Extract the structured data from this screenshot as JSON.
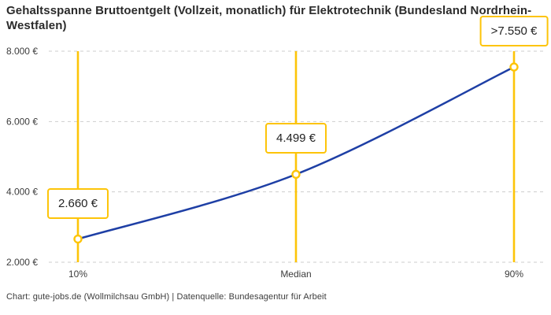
{
  "header": {
    "title": "Gehaltsspanne Bruttoentgelt (Vollzeit, monatlich) für Elektrotechnik (Bundesland Nordrhein-Westfalen)"
  },
  "footer": {
    "credit": "Chart: gute-jobs.de (Wollmilchsau GmbH) | Datenquelle: Bundesagentur für Arbeit"
  },
  "colors": {
    "accent_yellow": "#FDC408",
    "line_blue": "#1E3FA5",
    "grid": "#CDCDCD",
    "title_text": "#2B2B2B",
    "axis_text": "#3C3C3C",
    "label_text": "#222222"
  },
  "chart_data": {
    "type": "line",
    "title": "Gehaltsspanne Bruttoentgelt (Vollzeit, monatlich) für Elektrotechnik (Bundesland Nordrhein-Westfalen)",
    "categories": [
      "10%",
      "Median",
      "90%"
    ],
    "values": [
      2660,
      4499,
      7550
    ],
    "point_labels": [
      "2.660 €",
      "4.499 €",
      ">7.550 €"
    ],
    "yticks": [
      2000,
      4000,
      6000,
      8000
    ],
    "ytick_labels": [
      "2.000 €",
      "4.000 €",
      "6.000 €",
      "8.000 €"
    ],
    "ylim": [
      2000,
      8000
    ],
    "xlabel": "",
    "ylabel": "",
    "grid": "horizontal-dashed",
    "legend": "none",
    "markers": "vertical-yellow-line-per-category-with-open-circle-point"
  }
}
